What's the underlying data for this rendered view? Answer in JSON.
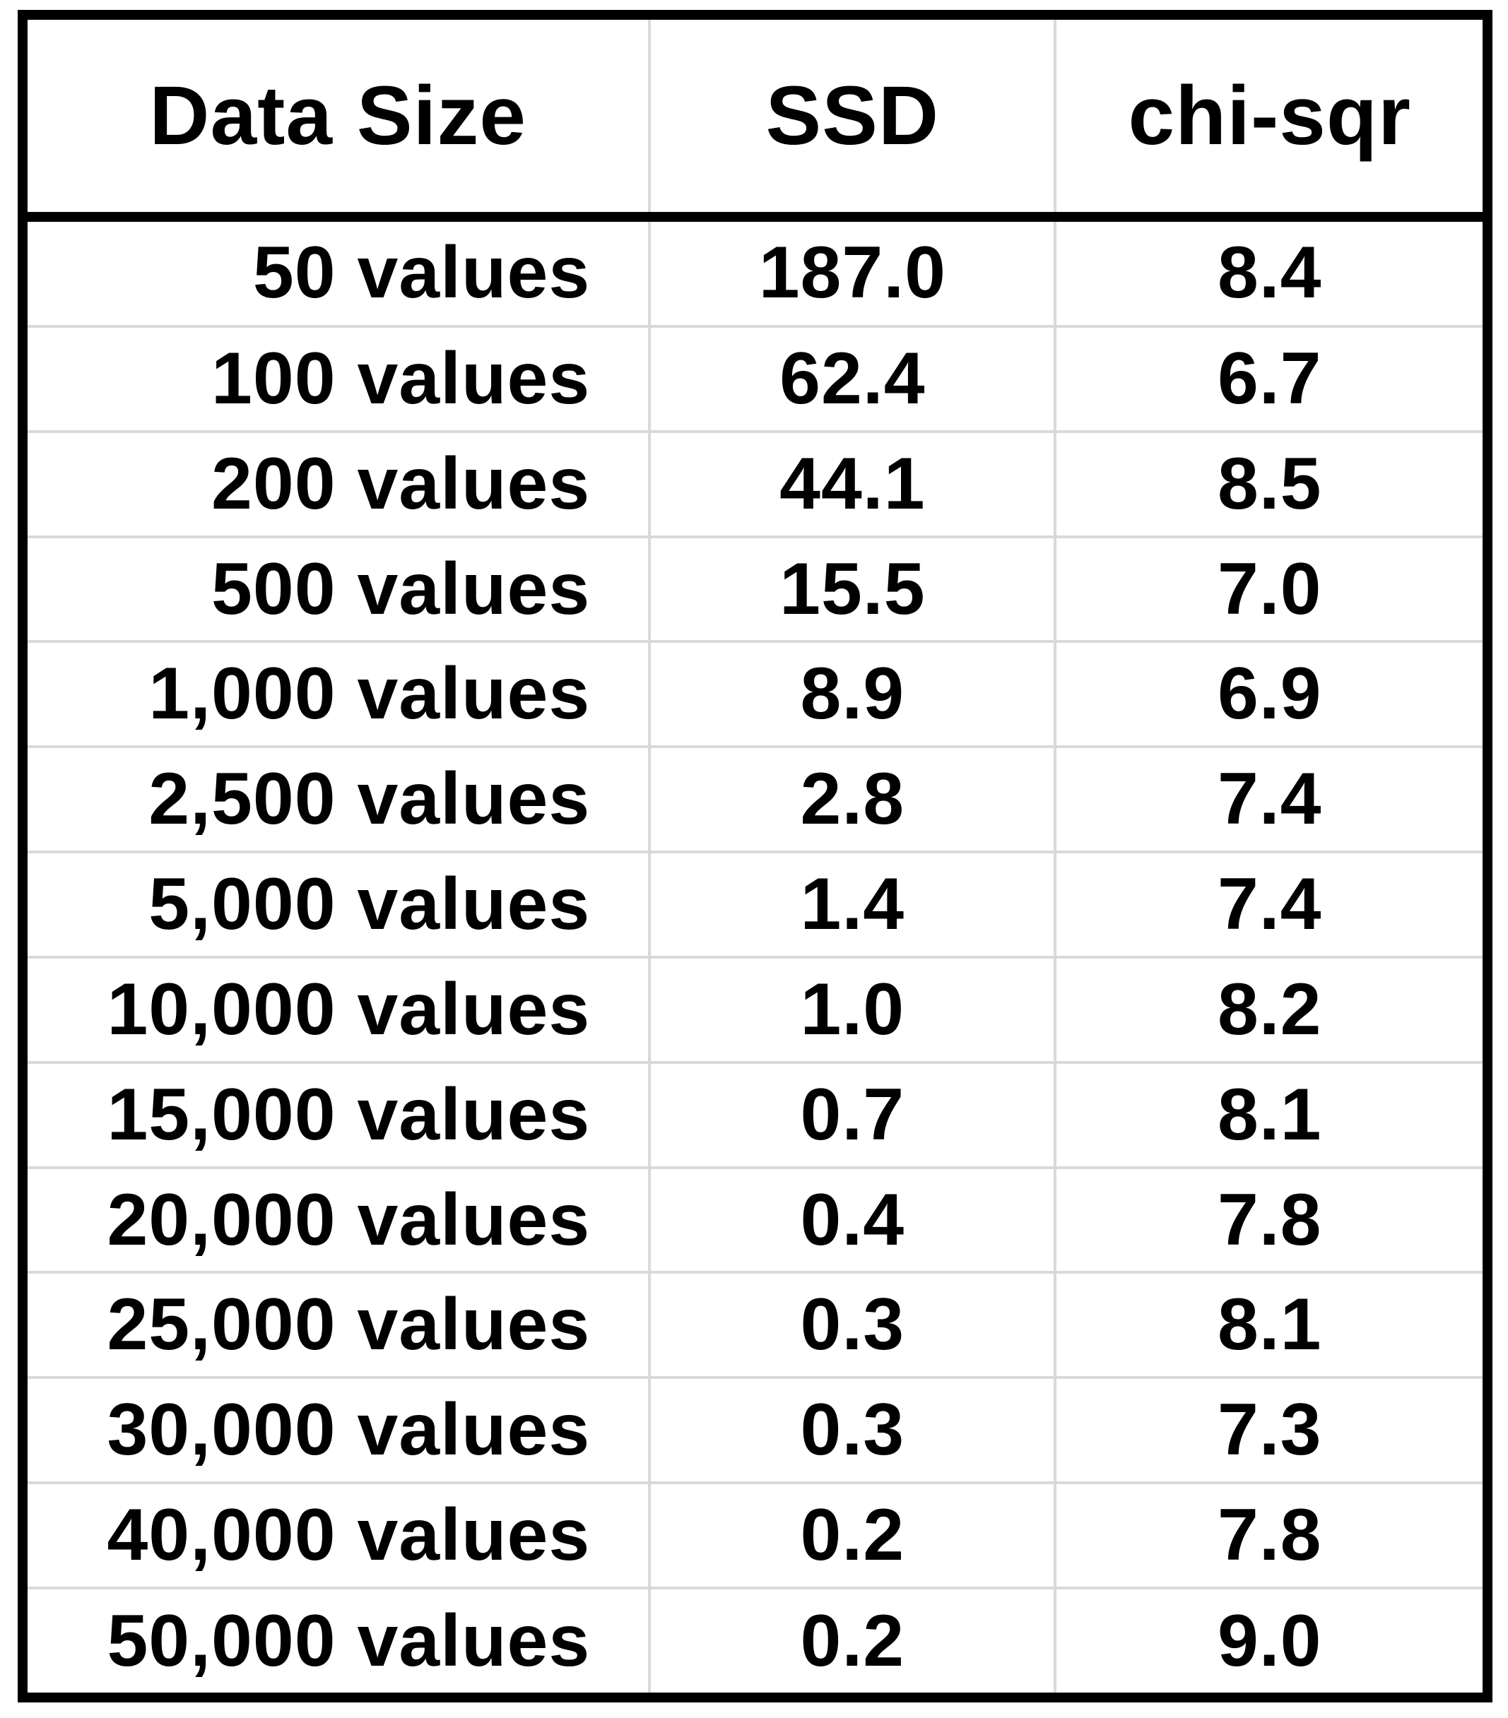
{
  "table": {
    "columns": [
      {
        "label": "Data Size"
      },
      {
        "label": "SSD"
      },
      {
        "label": "chi-sqr"
      }
    ],
    "rows": [
      {
        "size": "50 values",
        "ssd": "187.0",
        "chi_sqr": "8.4"
      },
      {
        "size": "100 values",
        "ssd": "62.4",
        "chi_sqr": "6.7"
      },
      {
        "size": "200 values",
        "ssd": "44.1",
        "chi_sqr": "8.5"
      },
      {
        "size": "500 values",
        "ssd": "15.5",
        "chi_sqr": "7.0"
      },
      {
        "size": "1,000 values",
        "ssd": "8.9",
        "chi_sqr": "6.9"
      },
      {
        "size": "2,500 values",
        "ssd": "2.8",
        "chi_sqr": "7.4"
      },
      {
        "size": "5,000 values",
        "ssd": "1.4",
        "chi_sqr": "7.4"
      },
      {
        "size": "10,000 values",
        "ssd": "1.0",
        "chi_sqr": "8.2"
      },
      {
        "size": "15,000 values",
        "ssd": "0.7",
        "chi_sqr": "8.1"
      },
      {
        "size": "20,000 values",
        "ssd": "0.4",
        "chi_sqr": "7.8"
      },
      {
        "size": "25,000 values",
        "ssd": "0.3",
        "chi_sqr": "8.1"
      },
      {
        "size": "30,000 values",
        "ssd": "0.3",
        "chi_sqr": "7.3"
      },
      {
        "size": "40,000 values",
        "ssd": "0.2",
        "chi_sqr": "7.8"
      },
      {
        "size": "50,000 values",
        "ssd": "0.2",
        "chi_sqr": "9.0"
      }
    ]
  },
  "colors": {
    "text": "#000000",
    "outer_border": "#000000",
    "gridline": "#d9d9d9",
    "background": "#ffffff"
  },
  "chart_data": {
    "type": "table",
    "title": "",
    "columns": [
      "Data Size",
      "SSD",
      "chi-sqr"
    ],
    "categories": [
      "50 values",
      "100 values",
      "200 values",
      "500 values",
      "1,000 values",
      "2,500 values",
      "5,000 values",
      "10,000 values",
      "15,000 values",
      "20,000 values",
      "25,000 values",
      "30,000 values",
      "40,000 values",
      "50,000 values"
    ],
    "series": [
      {
        "name": "SSD",
        "values": [
          187.0,
          62.4,
          44.1,
          15.5,
          8.9,
          2.8,
          1.4,
          1.0,
          0.7,
          0.4,
          0.3,
          0.3,
          0.2,
          0.2
        ]
      },
      {
        "name": "chi-sqr",
        "values": [
          8.4,
          6.7,
          8.5,
          7.0,
          6.9,
          7.4,
          7.4,
          8.2,
          8.1,
          7.8,
          8.1,
          7.3,
          7.8,
          9.0
        ]
      }
    ],
    "layout": {
      "grid": "light-gray inner gridlines",
      "outer_border": "thick black",
      "header_separator": "thick black"
    }
  }
}
